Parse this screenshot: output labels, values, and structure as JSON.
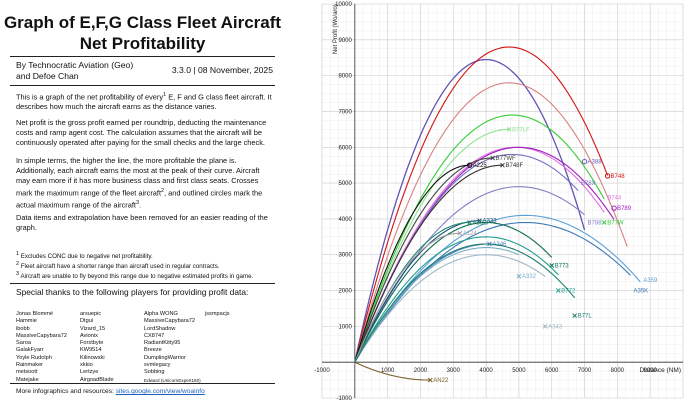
{
  "title_line1": "Graph of E,F,G Class Fleet Aircraft",
  "title_line2": "Net Profitability",
  "author_line1": "By Technocratic Aviation (Geo)",
  "author_line2": "and Defoe Chan",
  "version": "3.3.0 | 08 November, 2025",
  "para1": {
    "a": "This is a graph of the net profitability of every",
    "sup": "1",
    "b": " E, F and G class fleet aircraft. It describes how much the aircraft earns as the distance varies."
  },
  "para2": "Net profit is the gross profit earned per roundtrip, deducting the maintenance costs and ramp agent cost. The calculation assumes that the aircraft will be continuously operated after paying for the small checks and the large check.",
  "para3": {
    "a": "In simple terms, the higher the line, the more profitable the plane is. Additionally, each aircraft earns the most at the peak of their curve. Aircraft may earn more if it has more business class and first class seats. Crosses mark the maximum range of the fleet aircraft",
    "sup1": "2",
    "b": ", and outlined circles mark the actual maximum range of the aircraft",
    "sup2": "3",
    "c": "."
  },
  "para4": "Data items and extrapolation have been removed for an easier reading of the graph.",
  "footnotes": [
    {
      "num": "1",
      "text": " Excludes CONC due to negative net profitability."
    },
    {
      "num": "2",
      "text": " Fleet aircraft have a shorter range than aircraft used in regular contracts."
    },
    {
      "num": "3",
      "text": " Aircraft are unable to fly beyond this range due to negative estimated profits in game."
    }
  ],
  "thanks_heading": "Special thanks to the following players for providing profit data:",
  "thanks_cols": [
    [
      "Jonas Blommé",
      "Hammie",
      "ibobb",
      "MassiveCapybara72",
      "Saroa",
      "GalakFyarr",
      "Yoyle Rudolph",
      "Rainmaker",
      "metsoott",
      "Matejake"
    ],
    [
      "arsuepic",
      "Dtgui",
      "Vizard_15",
      "Avionix",
      "Forstbyte",
      "KW9514",
      "Kilinowski",
      "xkkio",
      "Lertzye",
      "AirgoadBlade"
    ],
    [
      "Alpha WONG",
      "MassiveCapybara72",
      "LordShadow",
      "CX8747",
      "RadiantKitty95",
      "Breeze",
      "DumplingWarrior",
      "svmlegacy",
      "Sobbing",
      "Edward (UnicornExpert150)"
    ],
    [
      "jssmpacjs"
    ]
  ],
  "more_label": "More infographics and resources:",
  "more_link": "sites.google.com/view/woainfo",
  "chart_data": {
    "type": "line",
    "xlabel": "Distance (NM)",
    "ylabel": "Net Profit (Wo/aro)",
    "xlim": [
      -1000,
      10000
    ],
    "ylim": [
      -1000,
      10000
    ],
    "x_ticks": [
      -1000,
      1000,
      2000,
      3000,
      4000,
      5000,
      6000,
      7000,
      8000,
      9000
    ],
    "y_ticks": [
      -1000,
      1000,
      2000,
      3000,
      4000,
      5000,
      6000,
      7000,
      8000,
      9000,
      10000
    ],
    "grid": true,
    "series": [
      {
        "name": "",
        "color": "#1d1d8a",
        "peak_x": 4000,
        "peak_y": 8450,
        "end_x": 7000,
        "end_y": 5200,
        "mark": "none"
      },
      {
        "name": "A388",
        "color": "#6a56b8",
        "peak_x": 4000,
        "peak_y": 8450,
        "end_x": 7000,
        "end_y": 5600,
        "mark": "circle"
      },
      {
        "name": "B748",
        "color": "#d01414",
        "peak_x": 4700,
        "peak_y": 8800,
        "end_x": 7700,
        "end_y": 5200,
        "mark": "circle"
      },
      {
        "name": "",
        "color": "#d98080",
        "peak_x": 4700,
        "peak_y": 7800,
        "end_x": 8300,
        "end_y": 3500,
        "mark": "none"
      },
      {
        "name": "B77LF",
        "color": "#8ee38e",
        "peak_x": 4700,
        "peak_y": 6500,
        "end_x": 4700,
        "end_y": 6500,
        "mark": "cross"
      },
      {
        "name": "B77W",
        "color": "#33cc33",
        "peak_x": 4800,
        "peak_y": 6900,
        "end_x": 7600,
        "end_y": 3900,
        "mark": "cross"
      },
      {
        "name": "B744",
        "color": "#e070e0",
        "peak_x": 4900,
        "peak_y": 6000,
        "end_x": 7600,
        "end_y": 4600,
        "mark": "none"
      },
      {
        "name": "B789",
        "color": "#a020c0",
        "peak_x": 5000,
        "peak_y": 6000,
        "end_x": 7900,
        "end_y": 4300,
        "mark": "circle"
      },
      {
        "name": "B78X",
        "color": "#7070c0",
        "peak_x": 4800,
        "peak_y": 5800,
        "end_x": 6800,
        "end_y": 5000,
        "mark": "none"
      },
      {
        "name": "B788",
        "color": "#8080c8",
        "peak_x": 5000,
        "peak_y": 4900,
        "end_x": 7000,
        "end_y": 3900,
        "mark": "none"
      },
      {
        "name": "B748F",
        "color": "#333333",
        "peak_x": 4500,
        "peak_y": 5500,
        "end_x": 4500,
        "end_y": 5500,
        "mark": "cross"
      },
      {
        "name": "B77WF",
        "color": "#444444",
        "peak_x": 4200,
        "peak_y": 5700,
        "end_x": 4200,
        "end_y": 5700,
        "mark": "cross"
      },
      {
        "name": "A225",
        "color": "#111111",
        "peak_x": 3500,
        "peak_y": 5500,
        "end_x": 3500,
        "end_y": 5500,
        "mark": "circle"
      },
      {
        "name": "A359",
        "color": "#5aa0d8",
        "peak_x": 5200,
        "peak_y": 4100,
        "end_x": 8700,
        "end_y": 2300,
        "mark": "none"
      },
      {
        "name": "A35K",
        "color": "#3a78b8",
        "peak_x": 5200,
        "peak_y": 3900,
        "end_x": 8400,
        "end_y": 2000,
        "mark": "none"
      },
      {
        "name": "A333",
        "color": "#1c4a7a",
        "peak_x": 3800,
        "peak_y": 3950,
        "end_x": 3800,
        "end_y": 3950,
        "mark": "cross"
      },
      {
        "name": "A332F",
        "color": "#208a70",
        "peak_x": 3500,
        "peak_y": 3900,
        "end_x": 3500,
        "end_y": 3900,
        "mark": "cross"
      },
      {
        "name": "B773",
        "color": "#0e6e50",
        "peak_x": 4000,
        "peak_y": 3900,
        "end_x": 6000,
        "end_y": 2700,
        "mark": "cross"
      },
      {
        "name": "A124",
        "color": "#a0a0a0",
        "peak_x": 3200,
        "peak_y": 3600,
        "end_x": 3200,
        "end_y": 3600,
        "mark": "cross"
      },
      {
        "name": "A346",
        "color": "#5088c8",
        "peak_x": 4100,
        "peak_y": 3300,
        "end_x": 4100,
        "end_y": 2300,
        "mark": "cross"
      },
      {
        "name": "A332",
        "color": "#7ab0c8",
        "peak_x": 4000,
        "peak_y": 3200,
        "end_x": 5000,
        "end_y": 2400,
        "mark": "cross"
      },
      {
        "name": "B772",
        "color": "#20a090",
        "peak_x": 4000,
        "peak_y": 3500,
        "end_x": 6200,
        "end_y": 2000,
        "mark": "cross"
      },
      {
        "name": "A343",
        "color": "#a0b8c8",
        "peak_x": 4000,
        "peak_y": 3000,
        "end_x": 5800,
        "end_y": 1000,
        "mark": "cross"
      },
      {
        "name": "B77L",
        "color": "#208070",
        "peak_x": 4000,
        "peak_y": 3300,
        "end_x": 6700,
        "end_y": 1300,
        "mark": "cross"
      },
      {
        "name": "AN22",
        "color": "#7a6228",
        "peak_x": 2300,
        "peak_y": -500,
        "end_x": 2300,
        "end_y": -500,
        "mark": "cross"
      }
    ]
  }
}
